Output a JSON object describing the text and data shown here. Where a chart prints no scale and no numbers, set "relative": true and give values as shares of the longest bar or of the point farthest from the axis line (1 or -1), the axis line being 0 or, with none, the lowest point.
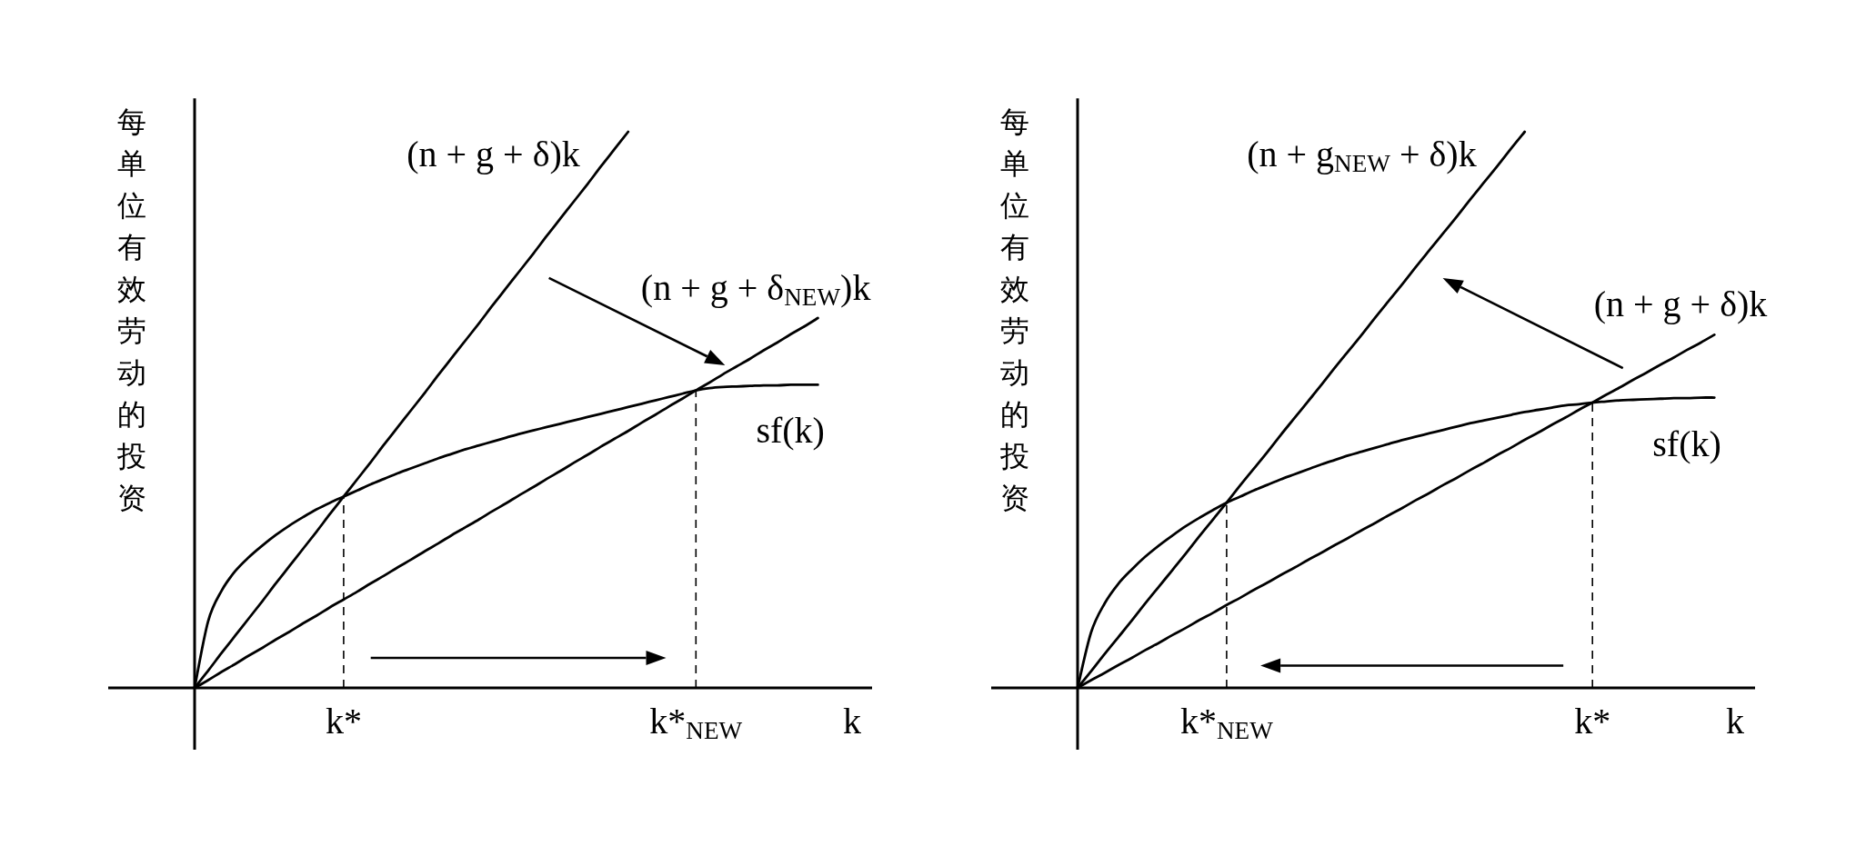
{
  "chart_data": [
    {
      "type": "line",
      "relative": true,
      "xlabel": "k",
      "ylabel": "每单位有效劳动的投资",
      "ref_lines": [
        {
          "axis": "x",
          "value": "k*",
          "color": "#000000",
          "line_style": "dashed"
        },
        {
          "axis": "x",
          "value": "k*$_{NEW}$",
          "color": "#000000",
          "line_style": "dashed"
        }
      ],
      "categories": [
        null,
        null,
        null,
        null,
        null,
        null,
        null,
        null,
        null,
        null,
        null,
        "k*",
        null,
        null,
        null,
        null,
        null,
        null,
        null,
        null,
        null,
        null,
        null,
        null,
        null,
        null,
        null,
        null,
        null,
        null,
        null,
        null,
        null,
        null,
        null,
        null,
        null,
        "k*$_{NEW}$",
        null,
        null,
        null,
        null,
        null,
        null,
        null,
        null,
        null,
        null,
        null,
        null,
        null
      ],
      "series": [
        {
          "name": "(n + g + δ)k",
          "color": "#000000",
          "line_style": "solid",
          "values": [
            0,
            0.031,
            0.063,
            0.094,
            0.125,
            0.156,
            0.188,
            0.219,
            0.25,
            0.281,
            0.313,
            0.344,
            0.375,
            0.406,
            0.438,
            0.469,
            0.5,
            0.531,
            0.563,
            0.594,
            0.625,
            0.656,
            0.688,
            0.719,
            0.75,
            0.781,
            0.813,
            0.844,
            0.875,
            0.906,
            0.938,
            0.969,
            1.0,
            null,
            null,
            null,
            null,
            null,
            null,
            null,
            null,
            null,
            null,
            null,
            null,
            null,
            null,
            null,
            null,
            null,
            null
          ]
        },
        {
          "name": "(n + g + δ$_{NEW}$)k",
          "color": "#000000",
          "line_style": "solid",
          "values": [
            0,
            0.014,
            0.029,
            0.043,
            0.058,
            0.072,
            0.087,
            0.101,
            0.116,
            0.13,
            0.145,
            0.159,
            0.173,
            0.188,
            0.202,
            0.217,
            0.231,
            0.246,
            0.26,
            0.275,
            0.289,
            0.303,
            0.318,
            0.332,
            0.347,
            0.361,
            0.376,
            0.39,
            0.405,
            0.419,
            0.434,
            0.448,
            0.462,
            0.477,
            0.491,
            0.506,
            0.52,
            0.535,
            0.549,
            0.564,
            0.578,
            0.592,
            0.607,
            0.621,
            0.636,
            0.65,
            0.665,
            null,
            null,
            null,
            null
          ]
        },
        {
          "name": "sf(k)",
          "color": "#000000",
          "line_style": "solid",
          "values": [
            0,
            0.12,
            0.175,
            0.21,
            0.235,
            0.256,
            0.275,
            0.292,
            0.307,
            0.321,
            0.333,
            0.344,
            0.355,
            0.366,
            0.376,
            0.386,
            0.395,
            0.404,
            0.413,
            0.421,
            0.429,
            0.436,
            0.443,
            0.45,
            0.457,
            0.463,
            0.469,
            0.475,
            0.481,
            0.487,
            0.493,
            0.499,
            0.505,
            0.511,
            0.517,
            0.523,
            0.529,
            0.535,
            0.539,
            0.541,
            0.542,
            0.543,
            0.544,
            0.544,
            0.545,
            0.545,
            0.545,
            null,
            null,
            null,
            null
          ]
        }
      ]
    },
    {
      "type": "line",
      "relative": true,
      "xlabel": "k",
      "ylabel": "每单位有效劳动的投资",
      "ref_lines": [
        {
          "axis": "x",
          "value": "k*$_{NEW}$",
          "color": "#000000",
          "line_style": "dashed"
        },
        {
          "axis": "x",
          "value": "k*",
          "color": "#000000",
          "line_style": "dashed"
        }
      ],
      "categories": [
        null,
        null,
        null,
        null,
        null,
        null,
        null,
        null,
        null,
        null,
        null,
        "k*$_{NEW}$",
        null,
        null,
        null,
        null,
        null,
        null,
        null,
        null,
        null,
        null,
        null,
        null,
        null,
        null,
        null,
        null,
        null,
        null,
        null,
        null,
        null,
        null,
        null,
        null,
        null,
        null,
        "k*",
        null,
        null,
        null,
        null,
        null,
        null,
        null,
        null,
        null,
        null,
        null,
        null
      ],
      "series": [
        {
          "name": "(n + g$_{NEW}$ + δ)k",
          "color": "#000000",
          "line_style": "solid",
          "values": [
            0,
            0.03,
            0.061,
            0.091,
            0.121,
            0.152,
            0.182,
            0.212,
            0.242,
            0.273,
            0.303,
            0.333,
            0.364,
            0.394,
            0.424,
            0.455,
            0.485,
            0.515,
            0.545,
            0.576,
            0.606,
            0.636,
            0.667,
            0.697,
            0.727,
            0.758,
            0.788,
            0.818,
            0.848,
            0.879,
            0.909,
            0.939,
            0.97,
            1.0,
            null,
            null,
            null,
            null,
            null,
            null,
            null,
            null,
            null,
            null,
            null,
            null,
            null,
            null,
            null,
            null,
            null
          ]
        },
        {
          "name": "(n + g + δ)k",
          "color": "#000000",
          "line_style": "solid",
          "values": [
            0,
            0.014,
            0.027,
            0.041,
            0.054,
            0.068,
            0.081,
            0.095,
            0.108,
            0.122,
            0.135,
            0.149,
            0.162,
            0.176,
            0.189,
            0.203,
            0.216,
            0.23,
            0.243,
            0.257,
            0.27,
            0.284,
            0.297,
            0.311,
            0.324,
            0.338,
            0.351,
            0.365,
            0.378,
            0.392,
            0.405,
            0.419,
            0.432,
            0.446,
            0.459,
            0.473,
            0.486,
            0.5,
            0.513,
            0.527,
            0.54,
            0.554,
            0.567,
            0.581,
            0.594,
            0.608,
            0.621,
            0.635,
            null,
            null,
            null
          ]
        },
        {
          "name": "sf(k)",
          "color": "#000000",
          "line_style": "solid",
          "values": [
            0,
            0.1,
            0.152,
            0.187,
            0.213,
            0.236,
            0.256,
            0.274,
            0.291,
            0.306,
            0.32,
            0.333,
            0.344,
            0.355,
            0.365,
            0.375,
            0.384,
            0.393,
            0.402,
            0.41,
            0.418,
            0.425,
            0.432,
            0.439,
            0.446,
            0.452,
            0.458,
            0.464,
            0.47,
            0.476,
            0.481,
            0.486,
            0.491,
            0.496,
            0.5,
            0.504,
            0.508,
            0.51,
            0.513,
            0.515,
            0.517,
            0.518,
            0.519,
            0.52,
            0.521,
            0.521,
            0.522,
            0.522,
            null,
            null,
            null
          ]
        }
      ]
    }
  ]
}
